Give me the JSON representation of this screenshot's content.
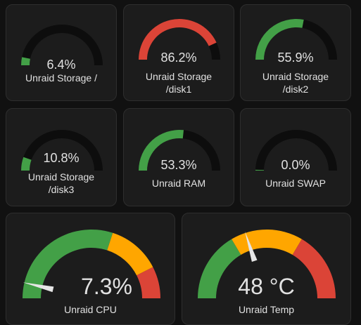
{
  "colors": {
    "track": "#0d0d0d",
    "green": "#43a047",
    "red": "#db4437",
    "orange": "#ffa600",
    "needle": "#e6e6e6"
  },
  "gauges": [
    {
      "id": "storage-root",
      "value_text": "6.4%",
      "percent": 6.4,
      "color": "green",
      "label_line1": "Unraid Storage /",
      "label_line2": ""
    },
    {
      "id": "storage-disk1",
      "value_text": "86.2%",
      "percent": 86.2,
      "color": "red",
      "label_line1": "Unraid Storage",
      "label_line2": "/disk1"
    },
    {
      "id": "storage-disk2",
      "value_text": "55.9%",
      "percent": 55.9,
      "color": "green",
      "label_line1": "Unraid Storage",
      "label_line2": "/disk2"
    },
    {
      "id": "storage-disk3",
      "value_text": "10.8%",
      "percent": 10.8,
      "color": "green",
      "label_line1": "Unraid Storage",
      "label_line2": "/disk3"
    },
    {
      "id": "ram",
      "value_text": "53.3%",
      "percent": 53.3,
      "color": "green",
      "label_line1": "Unraid RAM",
      "label_line2": ""
    },
    {
      "id": "swap",
      "value_text": "0.0%",
      "percent": 0.0,
      "color": "green",
      "label_line1": "Unraid SWAP",
      "label_line2": ""
    }
  ],
  "needle_gauges": [
    {
      "id": "cpu",
      "value_text": "7.3%",
      "label": "Unraid CPU",
      "fraction": 0.073,
      "segments": [
        {
          "from": 0.0,
          "to": 0.6,
          "color": "green"
        },
        {
          "from": 0.6,
          "to": 0.85,
          "color": "orange"
        },
        {
          "from": 0.85,
          "to": 1.0,
          "color": "red"
        }
      ]
    },
    {
      "id": "temp",
      "value_text": "48 °C",
      "label": "Unraid Temp",
      "fraction": 0.4,
      "segments": [
        {
          "from": 0.0,
          "to": 0.33,
          "color": "green"
        },
        {
          "from": 0.33,
          "to": 0.67,
          "color": "orange"
        },
        {
          "from": 0.67,
          "to": 1.0,
          "color": "red"
        }
      ]
    }
  ]
}
